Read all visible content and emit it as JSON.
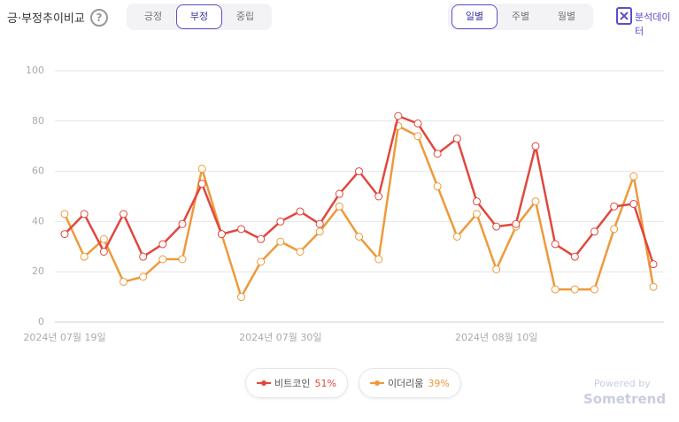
{
  "header": {
    "title": "긍·부정추이비교",
    "help": "?",
    "tabs": [
      "긍정",
      "부정",
      "중립"
    ],
    "selected_tab": 1,
    "period_tabs": [
      "일별",
      "주별",
      "월별"
    ],
    "selected_period": 0,
    "export": "분석데이터"
  },
  "chart_data": {
    "type": "line",
    "categories": [
      "2024년 07월 19일",
      null,
      null,
      null,
      null,
      null,
      null,
      null,
      null,
      null,
      null,
      "2024년 07월 30일",
      null,
      null,
      null,
      null,
      null,
      null,
      null,
      null,
      null,
      null,
      "2024년 08월 10일",
      null,
      null,
      null,
      null,
      null,
      null,
      null,
      null
    ],
    "series": [
      {
        "name": "비트코인",
        "share": "51%",
        "color": "#e0483e",
        "values": [
          35,
          43,
          28,
          43,
          26,
          31,
          39,
          55,
          35,
          37,
          33,
          40,
          44,
          39,
          51,
          60,
          50,
          82,
          79,
          67,
          73,
          48,
          38,
          39,
          70,
          31,
          26,
          36,
          46,
          47,
          23
        ]
      },
      {
        "name": "이더리움",
        "share": "39%",
        "color": "#ee9a3a",
        "values": [
          43,
          26,
          33,
          16,
          18,
          25,
          25,
          61,
          35,
          10,
          24,
          32,
          28,
          36,
          46,
          34,
          25,
          78,
          74,
          54,
          34,
          43,
          21,
          38,
          48,
          13,
          13,
          13,
          37,
          58,
          14
        ]
      }
    ],
    "ylim": [
      0,
      100
    ],
    "yticks": [
      0,
      20,
      40,
      60,
      80,
      100
    ],
    "grid": true
  },
  "footer": {
    "powered": "Powered by",
    "brand": "Sometrend"
  }
}
